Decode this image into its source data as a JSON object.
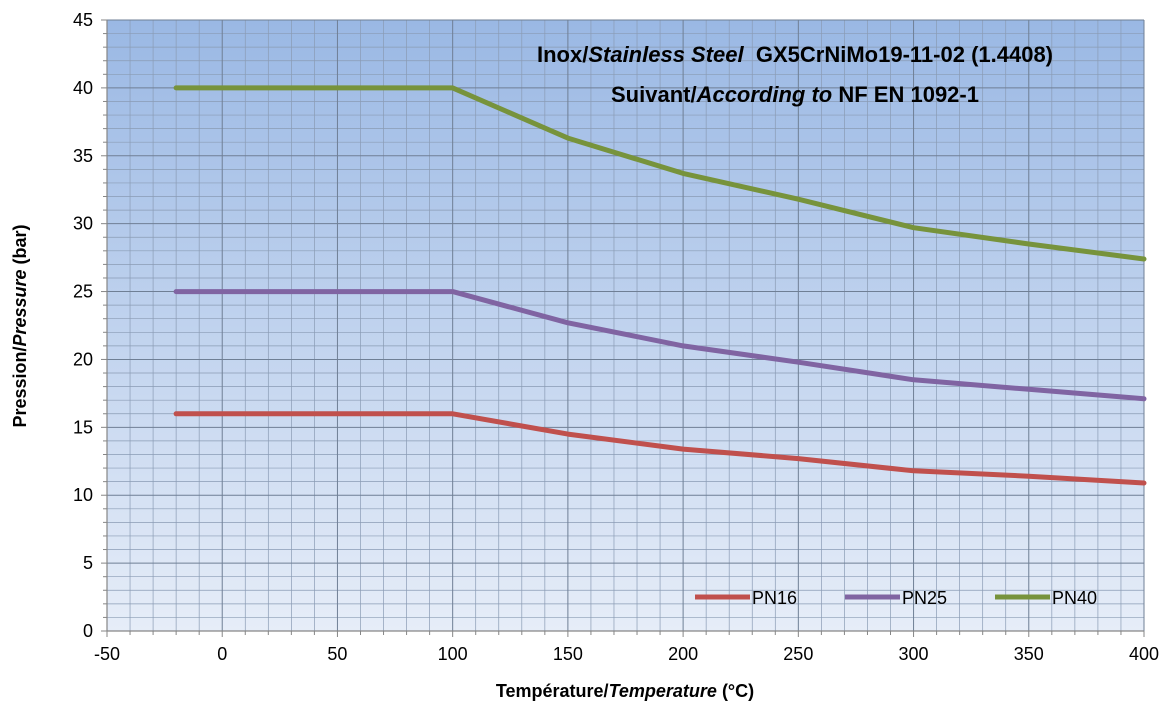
{
  "chart_data": {
    "type": "line",
    "title": {
      "line1": {
        "a": "Inox/",
        "b": "Stainless Steel",
        "c": "  GX5CrNiMo19-11-02 (1.4408)"
      },
      "line2": {
        "a": "Suivant/",
        "b": "According to",
        "c": " NF EN 1092-1"
      }
    },
    "xlabel": {
      "a": "Température/",
      "b": "Temperature",
      "c": " (°C)"
    },
    "ylabel": {
      "a": "Pression/",
      "b": "Pressure",
      "c": " (bar)"
    },
    "xlim": [
      -50,
      400
    ],
    "ylim": [
      0,
      45
    ],
    "x_ticks": [
      "-50",
      "0",
      "50",
      "100",
      "150",
      "200",
      "250",
      "300",
      "350",
      "400"
    ],
    "y_ticks": [
      "0",
      "5",
      "10",
      "15",
      "20",
      "25",
      "30",
      "35",
      "40",
      "45"
    ],
    "grid": true,
    "legend_position": "bottom-right",
    "series": [
      {
        "name": "PN16",
        "color": "#c0504d",
        "x": [
          -20,
          100,
          150,
          200,
          250,
          300,
          350,
          400
        ],
        "y": [
          16,
          16,
          14.5,
          13.4,
          12.7,
          11.8,
          11.4,
          10.9
        ]
      },
      {
        "name": "PN25",
        "color": "#8064a2",
        "x": [
          -20,
          100,
          150,
          200,
          250,
          300,
          350,
          400
        ],
        "y": [
          25,
          25,
          22.7,
          21,
          19.8,
          18.5,
          17.8,
          17.1
        ]
      },
      {
        "name": "PN40",
        "color": "#77933c",
        "x": [
          -20,
          100,
          150,
          200,
          250,
          300,
          350,
          400
        ],
        "y": [
          40,
          40,
          36.3,
          33.7,
          31.8,
          29.7,
          28.5,
          27.4
        ]
      }
    ]
  }
}
